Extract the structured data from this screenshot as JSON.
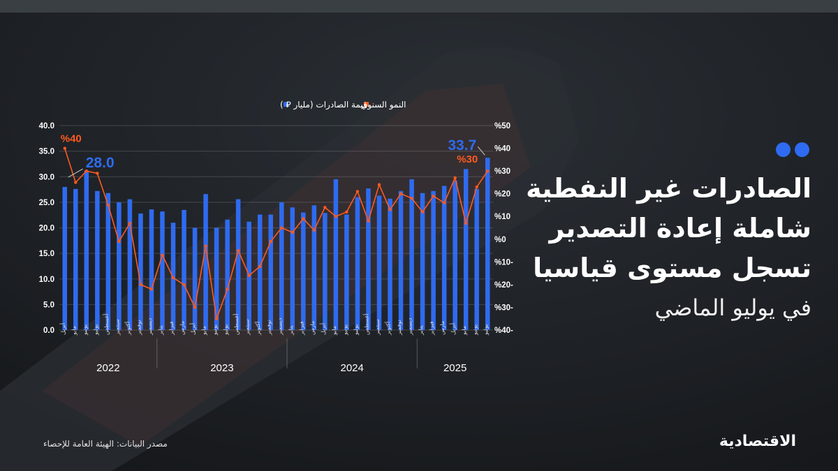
{
  "headline": {
    "line1": "الصادرات غير النفطية",
    "line2": "شاملة إعادة التصدير",
    "line3": "تسجل مستوى قياسيا",
    "subtitle": "في يوليو الماضي"
  },
  "source": "مصدر البيانات: الهيئة العامة للإحصاء",
  "logo": "الاقتصادية",
  "colors": {
    "bars": "#2f6bf0",
    "line": "#ff5a1f",
    "accent_dots": "#2f6bf0",
    "background": "#1b1e22"
  },
  "chart_data": {
    "type": "bar",
    "legend": [
      {
        "name": "قيمة الصادرات (مليار ⃁ )",
        "color": "#2f6bf0",
        "kind": "bar"
      },
      {
        "name": "النمو السنوي",
        "color": "#ff5a1f",
        "kind": "line"
      }
    ],
    "legend_position": "top",
    "grid": true,
    "y_left": {
      "ticks": [
        "0.0",
        "5.0",
        "10.0",
        "15.0",
        "20.0",
        "25.0",
        "30.0",
        "35.0",
        "40.0"
      ],
      "range": [
        0,
        40
      ]
    },
    "y_right": {
      "ticks": [
        "-40%",
        "-30%",
        "-20%",
        "-10%",
        "0%",
        "10%",
        "20%",
        "30%",
        "40%",
        "50%"
      ],
      "range": [
        -40,
        50
      ]
    },
    "categories": [
      "أبريل",
      "مايو",
      "يونيو",
      "يوليو",
      "أغسطس",
      "سبتمبر",
      "أكتوبر",
      "نوفمبر",
      "ديسمبر",
      "يناير",
      "فبراير",
      "مارس",
      "أبريل",
      "مايو",
      "يونيو",
      "يوليو",
      "أغسطس",
      "سبتمبر",
      "أكتوبر",
      "نوفمبر",
      "ديسمبر",
      "يناير",
      "فبراير",
      "مارس",
      "أبريل",
      "مايو",
      "يونيو",
      "يوليو",
      "أغسطس",
      "سبتمبر",
      "أكتوبر",
      "نوفمبر",
      "ديسمبر",
      "يناير",
      "فبراير",
      "مارس",
      "أبريل",
      "مايو",
      "يونيو",
      "يوليو"
    ],
    "years": [
      {
        "label": "2022",
        "from": 0,
        "to": 8
      },
      {
        "label": "2023",
        "from": 9,
        "to": 20
      },
      {
        "label": "2024",
        "from": 21,
        "to": 32
      },
      {
        "label": "2025",
        "from": 33,
        "to": 39
      }
    ],
    "series": [
      {
        "name": "قيمة الصادرات (مليار ⃁ )",
        "axis": "left",
        "values": [
          28.0,
          27.6,
          31.2,
          27.2,
          26.8,
          25.0,
          25.6,
          22.8,
          23.6,
          23.2,
          21.0,
          23.5,
          20.0,
          26.6,
          20.0,
          21.6,
          25.6,
          21.2,
          22.6,
          22.6,
          25.0,
          24.0,
          23.0,
          24.4,
          22.9,
          29.5,
          22.6,
          26.0,
          27.7,
          26.3,
          25.7,
          27.2,
          29.5,
          26.8,
          27.2,
          28.2,
          29.2,
          31.5,
          27.6,
          33.7
        ]
      },
      {
        "name": "النمو السنوي",
        "axis": "right",
        "values": [
          40,
          25,
          30,
          29,
          15,
          -1,
          7,
          -20,
          -22,
          -7,
          -17,
          -20,
          -30,
          -3,
          -35,
          -22,
          -5,
          -16,
          -12,
          -1,
          5,
          3,
          9,
          4,
          14,
          10,
          12,
          21,
          8,
          24,
          13,
          20,
          18,
          12,
          19,
          16,
          27,
          7,
          23,
          30
        ]
      }
    ],
    "data_labels": [
      {
        "series": 0,
        "index": 0,
        "text": "28.0"
      },
      {
        "series": 0,
        "index": 39,
        "text": "33.7"
      },
      {
        "series": 1,
        "index": 0,
        "text": "%40"
      },
      {
        "series": 1,
        "index": 39,
        "text": "%30"
      }
    ]
  }
}
